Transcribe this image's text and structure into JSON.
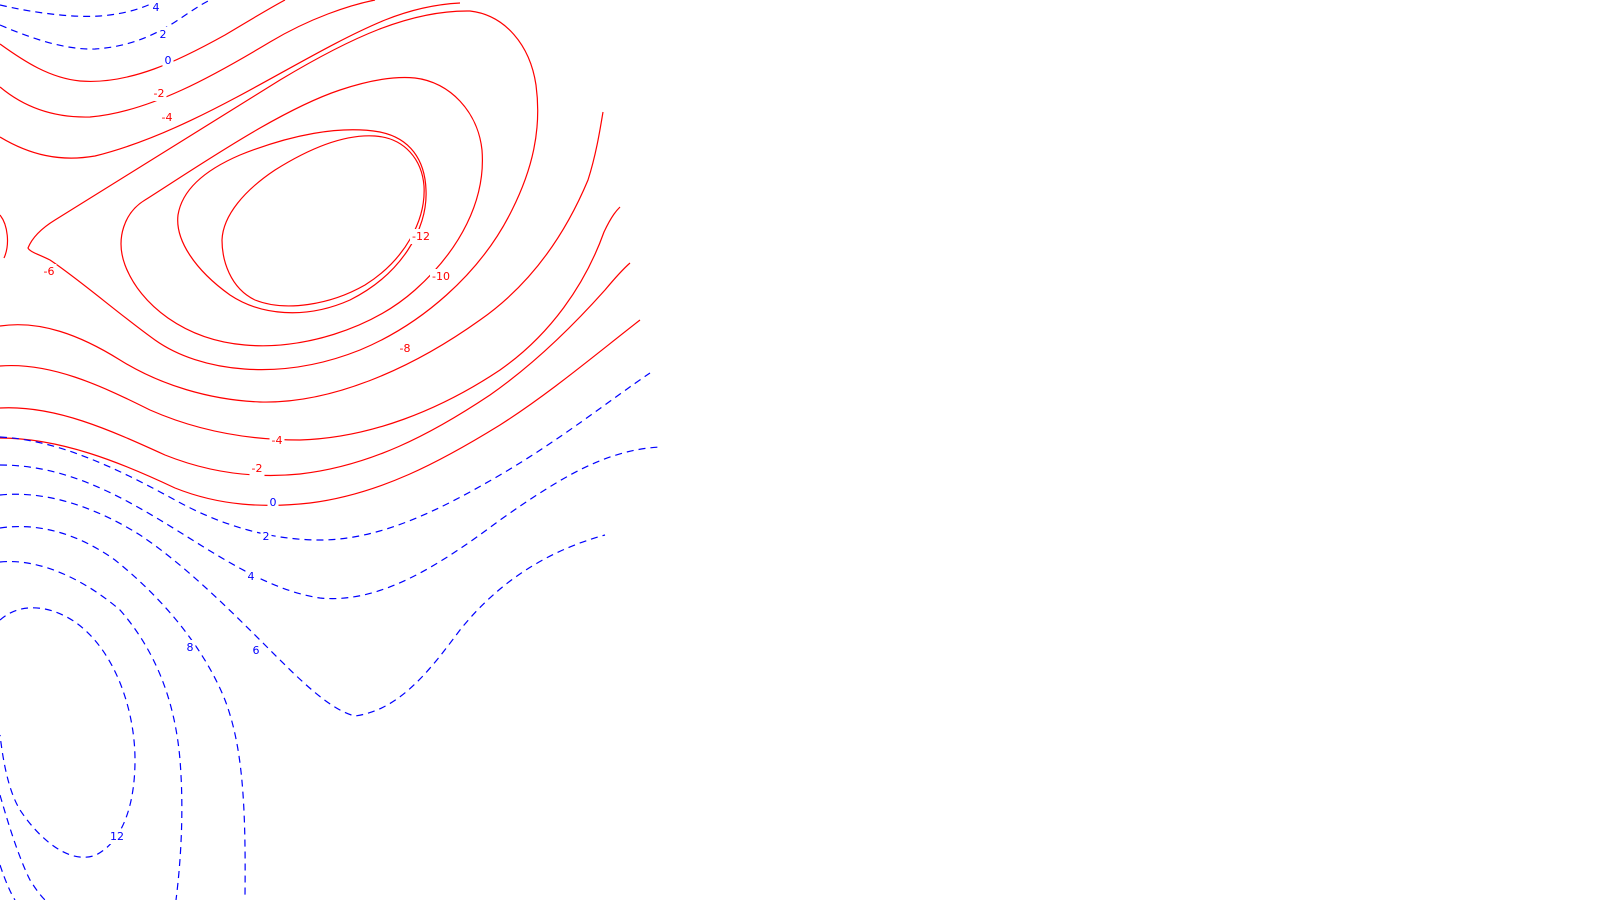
{
  "chart_data": {
    "type": "contour",
    "title": "",
    "xlabel": "",
    "ylabel": "",
    "grid": false,
    "legend": "none",
    "colors": {
      "negative": "#ff0000",
      "positive": "#0000ff"
    },
    "negative_style": "solid",
    "positive_style": "dashed",
    "levels": [
      -12,
      -10,
      -8,
      -6,
      -4,
      -2,
      0,
      2,
      4,
      6,
      8,
      12
    ],
    "level_labels": [
      {
        "text": "4",
        "level": 4
      },
      {
        "text": "2",
        "level": 2
      },
      {
        "text": "0",
        "level": 0
      },
      {
        "text": "-2",
        "level": -2
      },
      {
        "text": "-4",
        "level": -4
      },
      {
        "text": "-6",
        "level": -6
      },
      {
        "text": "-12",
        "level": -12
      },
      {
        "text": "-10",
        "level": -10
      },
      {
        "text": "-8",
        "level": -8
      },
      {
        "text": "-4",
        "level": -4
      },
      {
        "text": "-2",
        "level": -2
      },
      {
        "text": "0",
        "level": 0
      },
      {
        "text": "2",
        "level": 2
      },
      {
        "text": "4",
        "level": 4
      },
      {
        "text": "8",
        "level": 8
      },
      {
        "text": "6",
        "level": 6
      },
      {
        "text": "12",
        "level": 12
      }
    ]
  }
}
